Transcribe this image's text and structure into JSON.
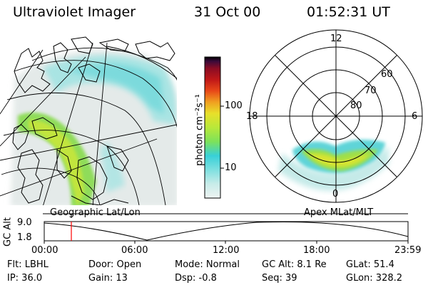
{
  "header": {
    "title": "Ultraviolet Imager",
    "date": "31 Oct 00",
    "time": "01:52:31 UT"
  },
  "colorbar": {
    "unit_label": "photon cm⁻²s⁻¹",
    "ticks": [
      "100",
      "10"
    ],
    "scale": "log",
    "colors": [
      "#eef3f2",
      "#c8ece9",
      "#7fe0e0",
      "#38d0d8",
      "#7de25a",
      "#b8e83a",
      "#e8e02a",
      "#f0a020",
      "#e84818",
      "#c01818",
      "#8a0c24",
      "#3a0a3a",
      "#000000"
    ]
  },
  "left_panel": {
    "caption": "Geographic Lat/Lon"
  },
  "right_panel": {
    "caption": "Apex MLat/MLT",
    "mlt_labels": [
      "12",
      "18",
      "6",
      "0"
    ],
    "mlat_labels": [
      "60",
      "70",
      "80"
    ]
  },
  "altitude_plot": {
    "ylabel": "GC Alt",
    "yticks": [
      "9.0",
      "1.8"
    ],
    "xticks": [
      "00:00",
      "06:00",
      "12:00",
      "18:00",
      "23:59"
    ],
    "marker_time": "01:52",
    "marker_color": "#ff0000"
  },
  "info": {
    "row1": {
      "flt": "Flt: LBHL",
      "door": "Door: Open",
      "mode": "Mode: Normal",
      "gcalt": "GC Alt: 8.1 Re",
      "glat": "GLat:  51.4"
    },
    "row2": {
      "ip": "IP: 36.0",
      "gain": "Gain: 13",
      "dsp": "Dsp:   -0.8",
      "seq": "Seq: 39",
      "glon": "GLon: 328.2"
    }
  }
}
